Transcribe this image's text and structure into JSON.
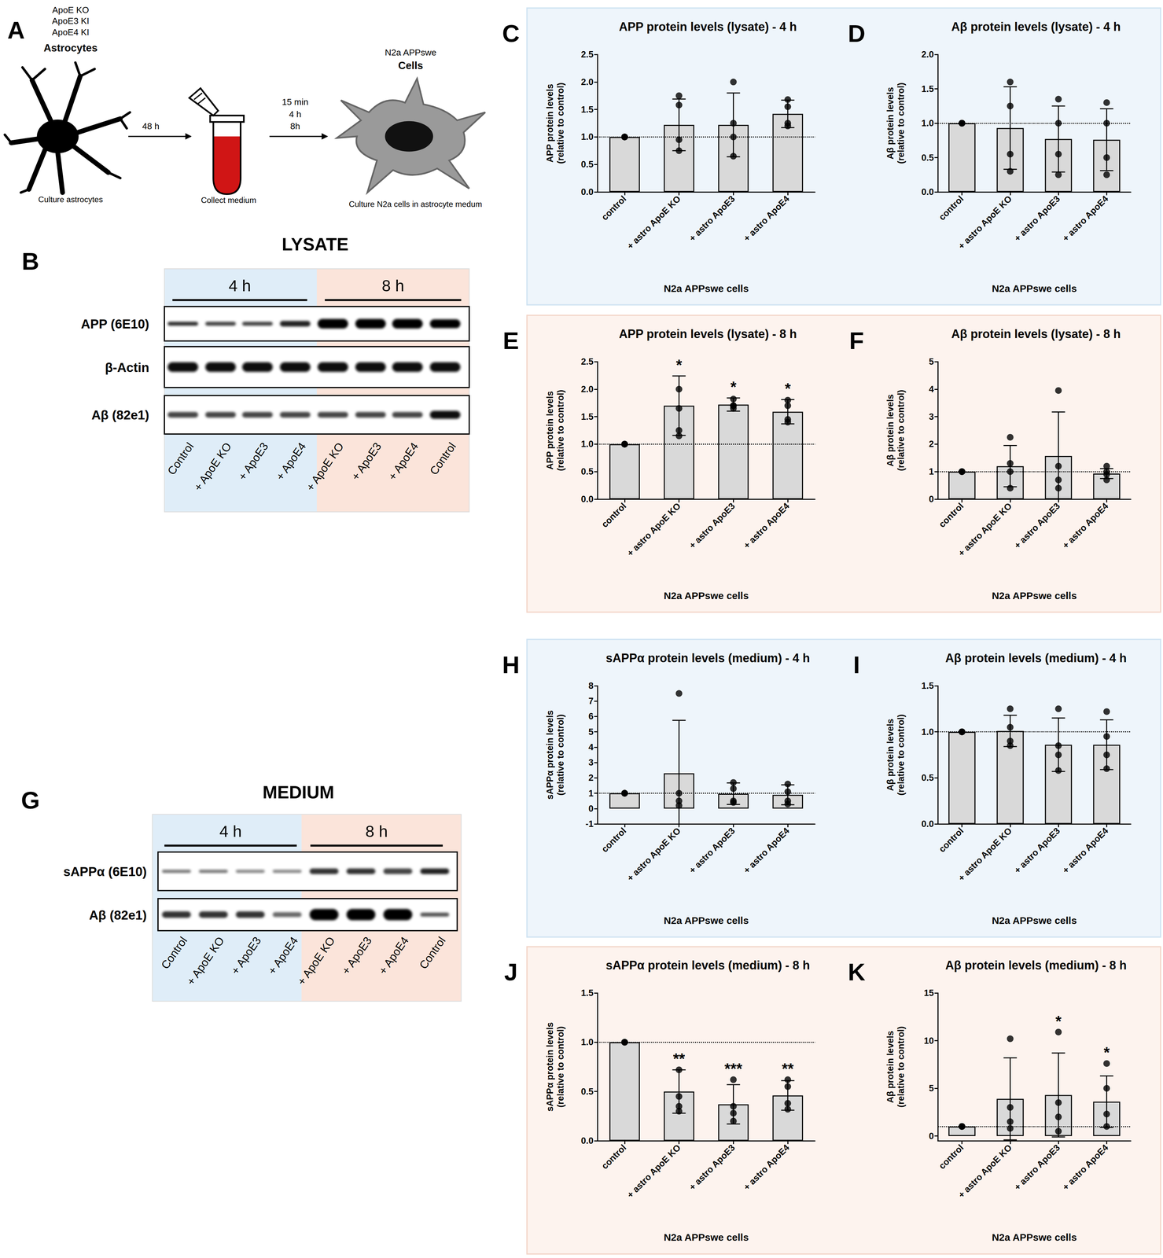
{
  "schematic": {
    "panel_label": "A",
    "astrocyte_lines": [
      "ApoE KO",
      "ApoE3 KI",
      "ApoE4 KI"
    ],
    "astrocyte_title": "Astrocytes",
    "step1": "48 h",
    "astrocyte_caption": "Culture astrocytes",
    "tube_caption": "Collect medium",
    "times": [
      "15 min",
      "4 h",
      "8h"
    ],
    "cell_lines": [
      "N2a APPswe",
      "Cells"
    ],
    "cell_caption": "Culture N2a cells in astrocyte medum"
  },
  "blots": [
    {
      "panel_label": "B",
      "title": "LYSATE",
      "groups": [
        "4 h",
        "8 h"
      ],
      "rows": [
        "APP (6E10)",
        "β-Actin",
        "Aβ (82e1)"
      ],
      "lanes": [
        "Control",
        "+ ApoE KO",
        "+ ApoE3",
        "+ ApoE4",
        "+ ApoE KO",
        "+ ApoE3",
        "+ ApoE4",
        "Control"
      ]
    },
    {
      "panel_label": "G",
      "title": "MEDIUM",
      "groups": [
        "4 h",
        "8 h"
      ],
      "rows": [
        "sAPPα (6E10)",
        "Aβ (82e1)"
      ],
      "lanes": [
        "Control",
        "+ ApoE KO",
        "+ ApoE3",
        "+ ApoE4",
        "+ ApoE KO",
        "+ ApoE3",
        "+ ApoE4",
        "Control"
      ]
    }
  ],
  "chart_data": [
    {
      "type": "bar",
      "panel_label": "C",
      "title": "APP protein levels (lysate) - 4 h",
      "ylabel": "APP protein levels\n(relative to control)",
      "xlabel": "N2a APPswe cells",
      "categories": [
        "control",
        "+ astro ApoE KO",
        "+ astro ApoE3",
        "+ astro ApoE4"
      ],
      "values": [
        1.0,
        1.22,
        1.22,
        1.42
      ],
      "error": [
        0,
        0.47,
        0.58,
        0.25
      ],
      "points": [
        [
          1.0,
          1.0,
          1.0,
          1.0
        ],
        [
          1.75,
          1.58,
          0.95,
          0.75
        ],
        [
          2.0,
          1.25,
          1.0,
          0.65
        ],
        [
          1.68,
          1.55,
          1.25,
          1.2
        ]
      ],
      "annotations": [
        null,
        null,
        null,
        null
      ],
      "reference_line": 1,
      "ylim": [
        0,
        2.5
      ],
      "yticks": [
        {
          "value": 0,
          "label": "0.0"
        },
        0.5,
        {
          "value": 1,
          "label": "1.0"
        },
        1.5,
        {
          "value": 2,
          "label": "2.0"
        },
        2.5
      ],
      "color": "#d9d9d9",
      "grid": false
    },
    {
      "type": "bar",
      "panel_label": "D",
      "title": "Aβ protein levels (lysate) - 4 h",
      "ylabel": "Aβ protein levels\n(relative to control)",
      "xlabel": "N2a APPswe cells",
      "categories": [
        "control",
        "+ astro ApoE KO",
        "+ astro ApoE3",
        "+ astro ApoE4"
      ],
      "values": [
        1.0,
        0.93,
        0.77,
        0.76
      ],
      "error": [
        0,
        0.6,
        0.48,
        0.45
      ],
      "points": [
        [
          1.0,
          1.0,
          1.0,
          1.0
        ],
        [
          1.6,
          1.25,
          0.55,
          0.3
        ],
        [
          1.35,
          1.0,
          0.55,
          0.25
        ],
        [
          1.3,
          1.0,
          0.5,
          0.25
        ]
      ],
      "annotations": [
        null,
        null,
        null,
        null
      ],
      "reference_line": 1,
      "ylim": [
        0,
        2
      ],
      "yticks": [
        {
          "value": 0,
          "label": "0.0"
        },
        0.5,
        {
          "value": 1,
          "label": "1.0"
        },
        1.5,
        {
          "value": 2,
          "label": "2.0"
        }
      ],
      "color": "#d9d9d9",
      "grid": false
    },
    {
      "type": "bar",
      "panel_label": "E",
      "title": "APP protein levels (lysate) - 8 h",
      "ylabel": "APP protein levels\n(relative to control)",
      "xlabel": "N2a APPswe cells",
      "categories": [
        "control",
        "+ astro ApoE KO",
        "+ astro ApoE3",
        "+ astro ApoE4"
      ],
      "values": [
        1.0,
        1.7,
        1.72,
        1.59
      ],
      "error": [
        0,
        0.54,
        0.12,
        0.22
      ],
      "points": [
        [
          1.0,
          1.0,
          1.0,
          1.0
        ],
        [
          2.0,
          1.65,
          1.25,
          1.15
        ],
        [
          1.82,
          1.7,
          1.7,
          1.65
        ],
        [
          1.8,
          1.7,
          1.45,
          1.4
        ]
      ],
      "annotations": [
        null,
        "*",
        "*",
        "*"
      ],
      "reference_line": 1,
      "ylim": [
        0,
        2.5
      ],
      "yticks": [
        {
          "value": 0,
          "label": "0.0"
        },
        0.5,
        {
          "value": 1,
          "label": "1.0"
        },
        1.5,
        {
          "value": 2,
          "label": "2.0"
        },
        2.5
      ],
      "color": "#d9d9d9",
      "grid": false
    },
    {
      "type": "bar",
      "panel_label": "F",
      "title": "Aβ protein levels (lysate) - 8 h",
      "ylabel": "Aβ protein levels\n(relative to control)",
      "xlabel": "N2a APPswe cells",
      "categories": [
        "control",
        "+ astro ApoE KO",
        "+ astro ApoE3",
        "+ astro ApoE4"
      ],
      "values": [
        1.0,
        1.2,
        1.57,
        0.93
      ],
      "error": [
        0,
        0.75,
        1.6,
        0.18
      ],
      "points": [
        [
          1.0,
          1.0,
          1.0,
          1.0
        ],
        [
          2.25,
          1.3,
          1.0,
          0.4
        ],
        [
          3.95,
          1.2,
          0.7,
          0.4
        ],
        [
          1.2,
          1.0,
          0.9,
          0.7
        ]
      ],
      "annotations": [
        null,
        null,
        null,
        null
      ],
      "reference_line": 1,
      "ylim": [
        0,
        5
      ],
      "yticks": [
        0,
        1,
        2,
        3,
        4,
        5
      ],
      "color": "#d9d9d9",
      "grid": false
    },
    {
      "type": "bar",
      "panel_label": "H",
      "title": "sAPPα protein levels (medium) - 4 h",
      "ylabel": "sAPPα protein levels\n(relative to control)",
      "xlabel": "N2a APPswe cells",
      "categories": [
        "control",
        "+ astro ApoE KO",
        "+ astro ApoE3",
        "+ astro ApoE4"
      ],
      "values": [
        1.0,
        2.3,
        0.97,
        0.9
      ],
      "error": [
        0,
        3.45,
        0.7,
        0.65
      ],
      "points": [
        [
          1.0,
          1.0,
          1.0,
          1.0
        ],
        [
          7.5,
          1.0,
          0.5,
          0.2
        ],
        [
          1.7,
          1.3,
          0.5,
          0.4
        ],
        [
          1.6,
          1.1,
          0.5,
          0.3
        ]
      ],
      "annotations": [
        null,
        null,
        null,
        null
      ],
      "reference_line": 1,
      "ylim": [
        -1,
        8
      ],
      "yticks": [
        -1,
        0,
        1,
        2,
        3,
        4,
        5,
        6,
        7,
        8
      ],
      "color": "#d9d9d9",
      "grid": false
    },
    {
      "type": "bar",
      "panel_label": "I",
      "title": "Aβ protein levels (medium) - 4 h",
      "ylabel": "Aβ protein levels\n(relative to control)",
      "xlabel": "N2a APPswe cells",
      "categories": [
        "control",
        "+ astro ApoE KO",
        "+ astro ApoE3",
        "+ astro ApoE4"
      ],
      "values": [
        1.0,
        1.01,
        0.86,
        0.86
      ],
      "error": [
        0,
        0.17,
        0.29,
        0.27
      ],
      "points": [
        [
          1.0,
          1.0,
          1.0,
          1.0
        ],
        [
          1.25,
          1.05,
          0.9,
          0.85
        ],
        [
          1.25,
          0.85,
          0.75,
          0.58
        ],
        [
          1.22,
          0.95,
          0.75,
          0.6
        ]
      ],
      "annotations": [
        null,
        null,
        null,
        null
      ],
      "reference_line": 1,
      "ylim": [
        0,
        1.5
      ],
      "yticks": [
        {
          "value": 0,
          "label": "0.0"
        },
        0.5,
        {
          "value": 1,
          "label": "1.0"
        },
        1.5
      ],
      "color": "#d9d9d9",
      "grid": false
    },
    {
      "type": "bar",
      "panel_label": "J",
      "title": "sAPPα protein levels (medium) - 8 h",
      "ylabel": "sAPPα protein levels\n(relative to control)",
      "xlabel": "N2a APPswe cells",
      "categories": [
        "control",
        "+ astro ApoE KO",
        "+ astro ApoE3",
        "+ astro ApoE4"
      ],
      "values": [
        1.0,
        0.5,
        0.37,
        0.46
      ],
      "error": [
        0,
        0.22,
        0.2,
        0.15
      ],
      "points": [
        [
          1.0,
          1.0,
          1.0,
          1.0
        ],
        [
          0.72,
          0.45,
          0.35,
          0.3
        ],
        [
          0.62,
          0.35,
          0.28,
          0.2
        ],
        [
          0.62,
          0.55,
          0.38,
          0.32
        ]
      ],
      "annotations": [
        null,
        "**",
        "***",
        "**"
      ],
      "reference_line": 1,
      "ylim": [
        0,
        1.5
      ],
      "yticks": [
        {
          "value": 0,
          "label": "0.0"
        },
        0.5,
        {
          "value": 1,
          "label": "1.0"
        },
        1.5
      ],
      "color": "#d9d9d9",
      "grid": false
    },
    {
      "type": "bar",
      "panel_label": "K",
      "title": "Aβ protein levels (medium) - 8 h",
      "ylabel": "Aβ protein levels\n(relative to control)",
      "xlabel": "N2a APPswe cells",
      "categories": [
        "control",
        "+ astro ApoE KO",
        "+ astro ApoE3",
        "+ astro ApoE4"
      ],
      "values": [
        1.0,
        3.9,
        4.3,
        3.6
      ],
      "error": [
        0,
        4.3,
        4.4,
        2.7
      ],
      "points": [
        [
          1.0,
          1.0,
          1.0,
          1.0
        ],
        [
          10.2,
          3.0,
          1.5,
          0.8
        ],
        [
          10.9,
          3.5,
          2.0,
          0.5
        ],
        [
          7.6,
          5.0,
          2.3,
          1.0
        ]
      ],
      "annotations": [
        null,
        null,
        "*",
        "*"
      ],
      "reference_line": 1,
      "ylim": [
        -0.5,
        15
      ],
      "yticks": [
        0,
        5,
        10,
        15
      ],
      "color": "#d9d9d9",
      "grid": false
    }
  ]
}
